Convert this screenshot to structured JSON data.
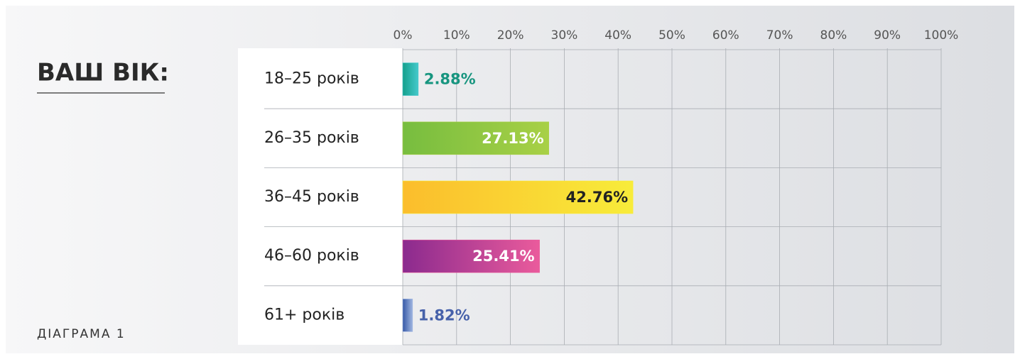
{
  "chart_data": {
    "type": "bar",
    "orientation": "horizontal",
    "title": "ВАШ ВІК:",
    "subtitle": "ДІАГРАМА 1",
    "categories": [
      "18–25 років",
      "26–35 років",
      "36–45 років",
      "46–60 років",
      "61+ років"
    ],
    "values": [
      2.88,
      27.13,
      42.76,
      25.41,
      1.82
    ],
    "value_labels": [
      "2.88%",
      "27.13%",
      "42.76%",
      "25.41%",
      "1.82%"
    ],
    "colors": [
      [
        "#14a08c",
        "#45c9cb"
      ],
      [
        "#77bd3f",
        "#a8d046"
      ],
      [
        "#fbbd2c",
        "#f8ec3a"
      ],
      [
        "#8b2a8e",
        "#ea5b9c"
      ],
      [
        "#3558a6",
        "#9fb5e0"
      ]
    ],
    "label_colors": [
      "#17957f",
      "#ffffff",
      "#222222",
      "#ffffff",
      "#4661aa"
    ],
    "xlim": [
      0,
      100
    ],
    "xticks": [
      {
        "value": 0,
        "label": "0%"
      },
      {
        "value": 10,
        "label": "10%"
      },
      {
        "value": 20,
        "label": "20%"
      },
      {
        "value": 30,
        "label": "30%"
      },
      {
        "value": 40,
        "label": "40%"
      },
      {
        "value": 50,
        "label": "50%"
      },
      {
        "value": 60,
        "label": "60%"
      },
      {
        "value": 70,
        "label": "70%"
      },
      {
        "value": 80,
        "label": "80%"
      },
      {
        "value": 90,
        "label": "90%"
      },
      {
        "value": 100,
        "label": "100%"
      }
    ],
    "grid": true
  }
}
